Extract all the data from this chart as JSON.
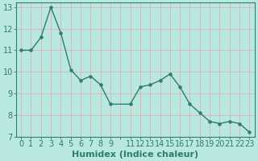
{
  "x": [
    0,
    1,
    2,
    3,
    4,
    5,
    6,
    7,
    8,
    9,
    11,
    12,
    13,
    14,
    15,
    16,
    17,
    18,
    19,
    20,
    21,
    22,
    23
  ],
  "y": [
    11.0,
    11.0,
    11.6,
    13.0,
    11.8,
    10.1,
    9.6,
    9.8,
    9.4,
    8.5,
    8.5,
    9.3,
    9.4,
    9.6,
    9.9,
    9.3,
    8.5,
    8.1,
    7.7,
    7.6,
    7.7,
    7.6,
    7.2
  ],
  "line_color": "#2e7d6e",
  "marker_color": "#2e7d6e",
  "bg_color": "#b8e8e0",
  "grid_color": "#d8b8b8",
  "xlabel": "Humidex (Indice chaleur)",
  "xlim": [
    -0.5,
    23.5
  ],
  "ylim": [
    7,
    13.2
  ],
  "xtick_labels": [
    "0",
    "1",
    "2",
    "3",
    "4",
    "5",
    "6",
    "7",
    "8",
    "9",
    "",
    "11",
    "12",
    "13",
    "14",
    "15",
    "16",
    "17",
    "18",
    "19",
    "20",
    "21",
    "22",
    "23"
  ],
  "xtick_positions": [
    0,
    1,
    2,
    3,
    4,
    5,
    6,
    7,
    8,
    9,
    10,
    11,
    12,
    13,
    14,
    15,
    16,
    17,
    18,
    19,
    20,
    21,
    22,
    23
  ],
  "yticks": [
    7,
    8,
    9,
    10,
    11,
    12,
    13
  ],
  "xlabel_fontsize": 8,
  "tick_fontsize": 7
}
